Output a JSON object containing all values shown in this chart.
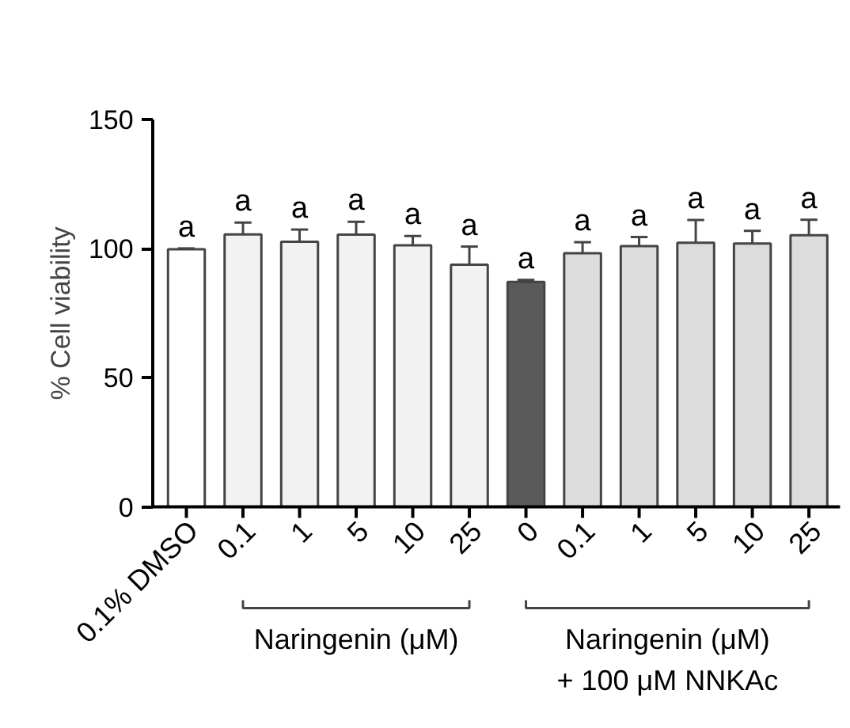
{
  "chart_data": {
    "type": "bar",
    "categories": [
      "0.1% DMSO",
      "0.1",
      "1",
      "5",
      "10",
      "25",
      "0",
      "0.1",
      "1",
      "5",
      "10",
      "25"
    ],
    "values": [
      99.8,
      105.5,
      102.7,
      105.4,
      101.3,
      93.8,
      87.1,
      98.2,
      101.0,
      102.3,
      102.0,
      105.2
    ],
    "errors": [
      0.3,
      4.6,
      4.7,
      5.0,
      3.6,
      7.0,
      0.8,
      4.3,
      3.5,
      8.8,
      4.9,
      6.0
    ],
    "colors": [
      "#ffffff",
      "#f2f2f2",
      "#f2f2f2",
      "#f2f2f2",
      "#f2f2f2",
      "#f2f2f2",
      "#5a5a5a",
      "#dcdcdc",
      "#dcdcdc",
      "#dcdcdc",
      "#dcdcdc",
      "#dcdcdc"
    ],
    "value_labels": [
      "a",
      "a",
      "a",
      "a",
      "a",
      "a",
      "a",
      "a",
      "a",
      "a",
      "a",
      "a"
    ],
    "ylabel": "% Cell viability",
    "ylim": [
      0,
      150
    ],
    "yticks": [
      0,
      50,
      100,
      150
    ],
    "grid": false,
    "annotations": [
      "Naringenin (μM)",
      "Naringenin (μM)\n+ 100 μM NNKAc"
    ]
  }
}
